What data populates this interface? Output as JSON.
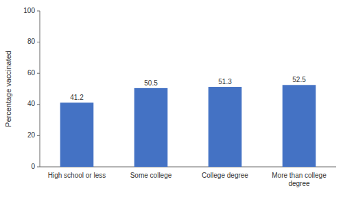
{
  "chart_data": {
    "type": "bar",
    "categories": [
      "High school or less",
      "Some college",
      "College degree",
      "More than college\ndegree"
    ],
    "values": [
      41.2,
      50.5,
      51.3,
      52.5
    ],
    "color": "#4472C4",
    "ylabel": "Percentage vaccinated",
    "ylim": [
      0,
      100
    ],
    "yticks": [
      0,
      20,
      40,
      60,
      80,
      100
    ],
    "grid": false,
    "data_labels": true
  }
}
